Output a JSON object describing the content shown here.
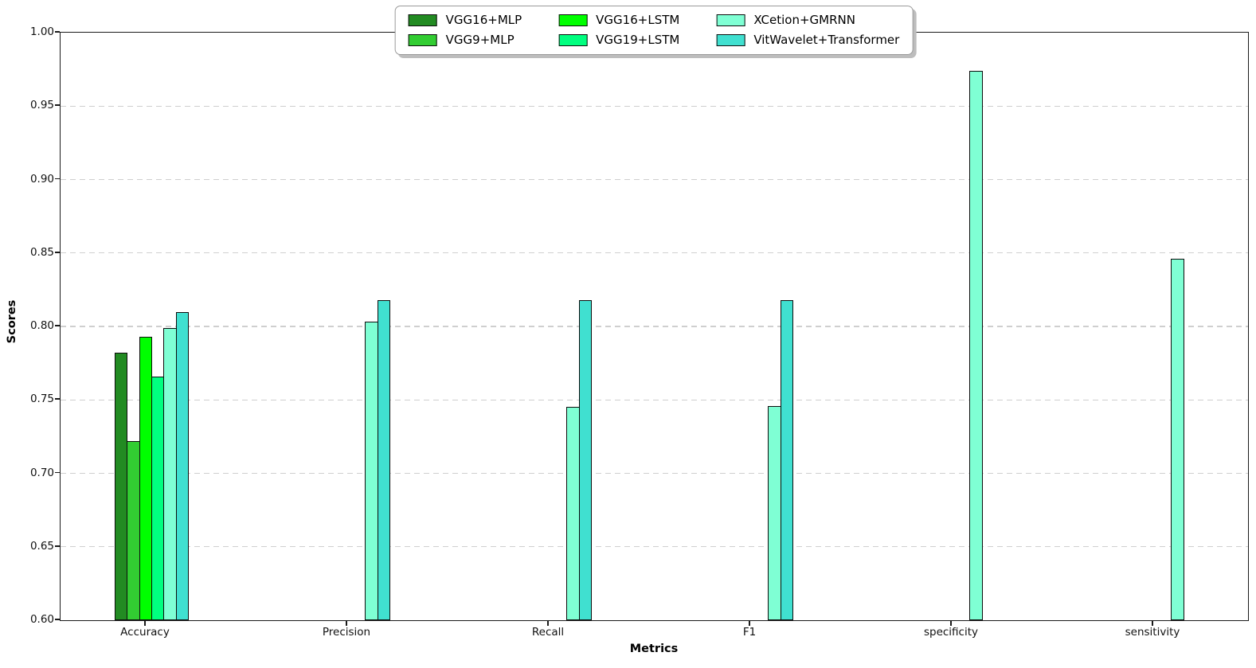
{
  "chart_data": {
    "type": "bar",
    "title": "",
    "xlabel": "Metrics",
    "ylabel": "Scores",
    "ylim": [
      0.6,
      1.0
    ],
    "ytick_step": 0.05,
    "ytick_labels": [
      "0.60",
      "0.65",
      "0.70",
      "0.75",
      "0.80",
      "0.85",
      "0.90",
      "0.95",
      "1.00"
    ],
    "categories": [
      "Accuracy",
      "Precision",
      "Recall",
      "F1",
      "specificity",
      "sensitivity"
    ],
    "series": [
      {
        "name": "VGG16+MLP",
        "color": "#228B22",
        "values": [
          0.782,
          null,
          null,
          null,
          null,
          null
        ]
      },
      {
        "name": "VGG9+MLP",
        "color": "#32CD32",
        "values": [
          0.722,
          null,
          null,
          null,
          null,
          null
        ]
      },
      {
        "name": "VGG16+LSTM",
        "color": "#00FF00",
        "values": [
          0.793,
          null,
          null,
          null,
          null,
          null
        ]
      },
      {
        "name": "VGG19+LSTM",
        "color": "#00FF7F",
        "values": [
          0.766,
          null,
          null,
          null,
          null,
          null
        ]
      },
      {
        "name": "XCetion+GMRNN",
        "color": "#7FFFD4",
        "values": [
          0.799,
          0.803,
          0.745,
          0.746,
          0.974,
          0.846
        ]
      },
      {
        "name": "VitWavelet+Transformer",
        "color": "#40E0D0",
        "values": [
          0.81,
          0.818,
          0.818,
          0.818,
          null,
          null
        ]
      }
    ],
    "legend_position": "upper center",
    "legend_columns": 3,
    "grid": "horizontal dashed",
    "grid_color": "#cfcfcf",
    "bar_edge_color": "#0d0d0d",
    "spine_color": "#1a1a1a"
  }
}
